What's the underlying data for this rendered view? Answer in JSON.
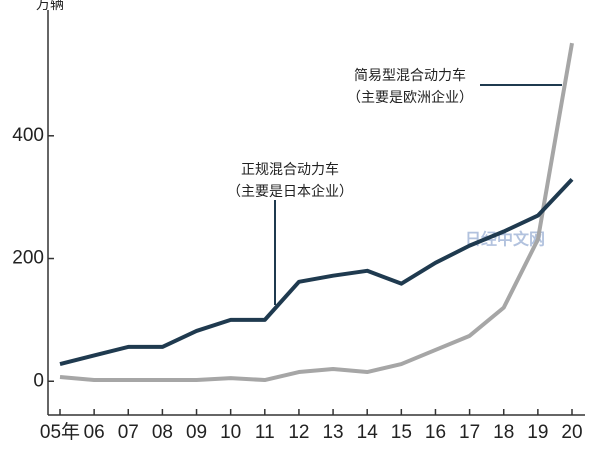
{
  "chart_data": {
    "type": "line",
    "y_label": "万辆",
    "categories": [
      "05年",
      "06",
      "07",
      "08",
      "09",
      "10",
      "11",
      "12",
      "13",
      "14",
      "15",
      "16",
      "17",
      "18",
      "19",
      "20"
    ],
    "series": [
      {
        "name": "正规混合动力车",
        "annotation": "（主要是日本企业）",
        "color": "#1f3a4f",
        "values": [
          28,
          42,
          56,
          56,
          82,
          100,
          100,
          162,
          172,
          180,
          159,
          193,
          221,
          244,
          270,
          329
        ]
      },
      {
        "name": "简易型混合动力车",
        "annotation": "（主要是欧洲企业）",
        "color": "#a6a6a6",
        "values": [
          7,
          2,
          2,
          2,
          2,
          5,
          2,
          15,
          20,
          15,
          28,
          51,
          74,
          120,
          231,
          551
        ]
      }
    ],
    "ylim": [
      -55,
      605
    ],
    "yticks": [
      0,
      200,
      400
    ],
    "grid": false,
    "watermark": "日经中文网"
  }
}
